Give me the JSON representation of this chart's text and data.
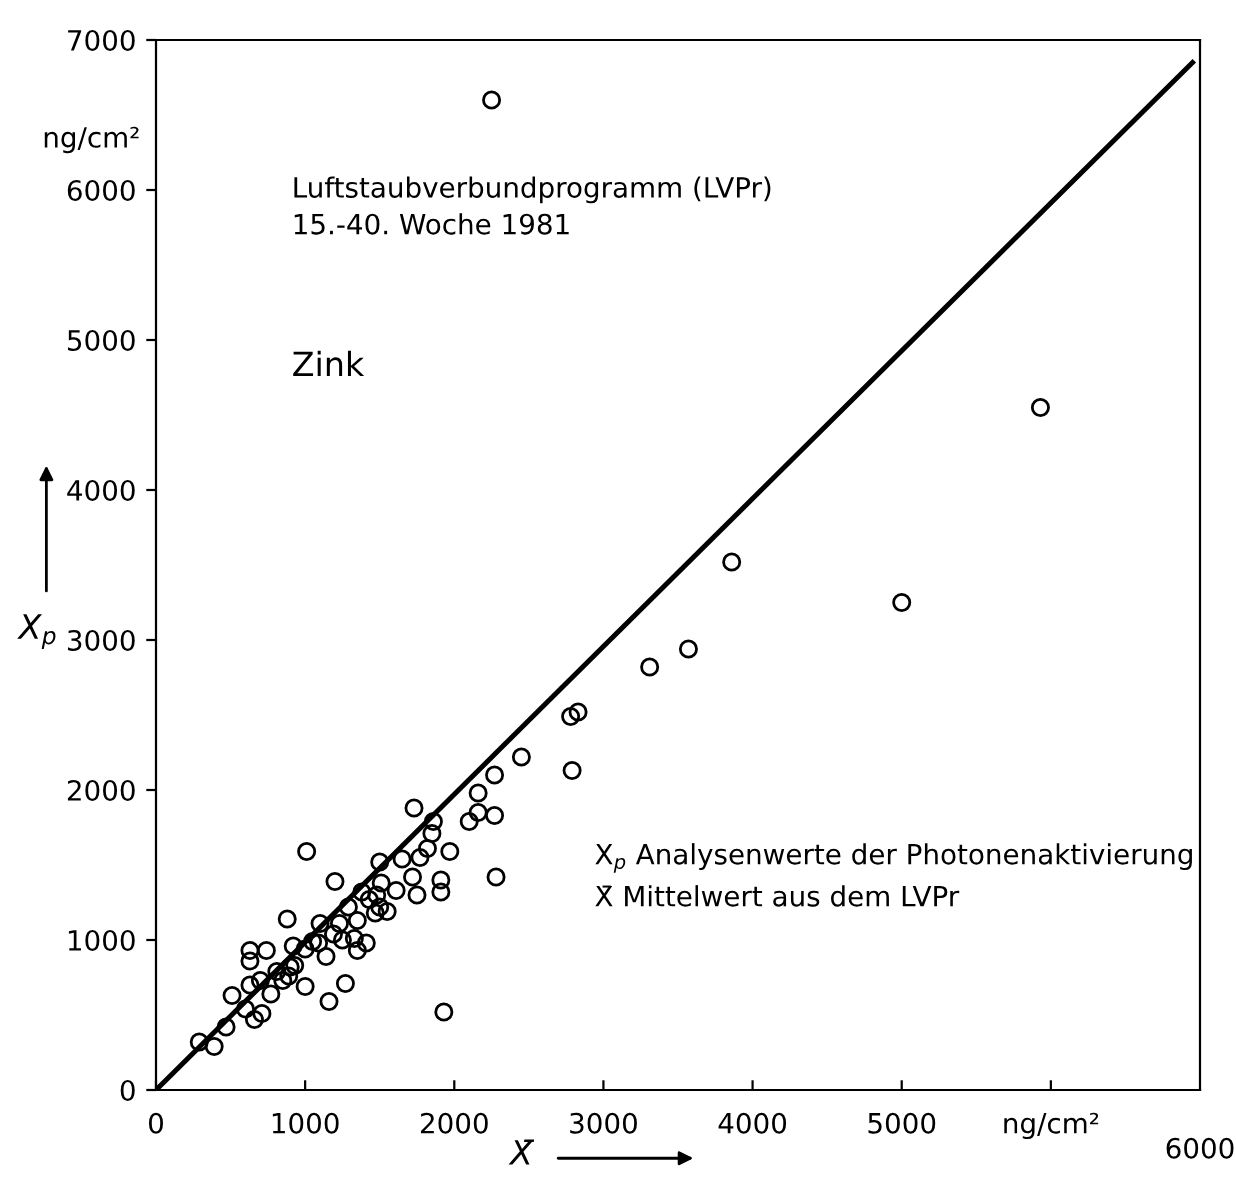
{
  "chart_data": {
    "type": "scatter",
    "title": "Luftstaubverbundprogramm (LVPr)",
    "subtitle": "15.-40. Woche 1981",
    "xlabel": "X̄",
    "ylabel": "X$_{p}$",
    "annotations": [
      "Zink",
      "X$_{p}$ Analysenwerte der Photonenaktivierung",
      "X̄ Mittelwert aus dem LVPr",
      "ng/cm²",
      "6000"
    ],
    "xlim": [
      0,
      7000
    ],
    "ylim": [
      0,
      7000
    ],
    "xticks": [
      0,
      1000,
      2000,
      3000,
      4000,
      5000,
      {
        "value": 6000,
        "label": "ng/cm²"
      }
    ],
    "yticks": [
      0,
      1000,
      2000,
      3000,
      4000,
      5000,
      6000,
      7000
    ],
    "grid": false,
    "legend": false,
    "series": [
      {
        "color": "#000000",
        "marker": "circle",
        "x": [
          2250,
          5930,
          5000,
          3860,
          3570,
          3310,
          2830,
          2780,
          2790,
          2450,
          2270,
          2160,
          1730,
          1860,
          2100,
          2160,
          2270,
          2280,
          1970,
          290,
          390,
          470,
          510,
          600,
          710,
          660,
          630,
          630,
          630,
          740,
          700,
          770,
          810,
          880,
          890,
          920,
          930,
          1000,
          1010,
          1050,
          1100,
          1140,
          1160,
          1200,
          1230,
          1250,
          1270,
          1290,
          1330,
          1350,
          1350,
          1380,
          1410,
          1430,
          1470,
          1500,
          1510,
          1480,
          1550,
          1610,
          1650,
          1720,
          1750,
          1770,
          1820,
          1850,
          1910,
          1910,
          1930,
          1000,
          1090,
          1190,
          1500,
          850,
          900
        ],
        "values": [
          6600,
          4550,
          3250,
          3520,
          2940,
          2820,
          2520,
          2490,
          2130,
          2220,
          2100,
          1980,
          1880,
          1790,
          1790,
          1850,
          1830,
          1420,
          1590,
          320,
          290,
          420,
          630,
          540,
          510,
          470,
          700,
          930,
          860,
          930,
          730,
          640,
          790,
          1140,
          760,
          960,
          830,
          690,
          1590,
          990,
          1110,
          890,
          590,
          1390,
          1110,
          1000,
          710,
          1220,
          1010,
          930,
          1130,
          1320,
          980,
          1270,
          1180,
          1520,
          1380,
          1300,
          1190,
          1330,
          1540,
          1420,
          1300,
          1550,
          1610,
          1710,
          1400,
          1320,
          520,
          940,
          980,
          1040,
          1220,
          730,
          820
        ]
      },
      {
        "type": "line",
        "color": "#000000",
        "marker": "none",
        "line_style": "solid",
        "x": [
          0,
          6950
        ],
        "values": [
          0,
          6850
        ]
      }
    ]
  }
}
